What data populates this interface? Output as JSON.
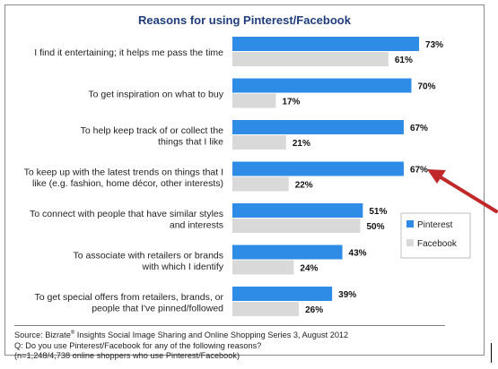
{
  "chart_data": {
    "type": "bar",
    "orientation": "horizontal",
    "title": "Reasons for using Pinterest/Facebook",
    "categories": [
      [
        "I find it entertaining; it helps me pass the time"
      ],
      [
        "To get inspiration on what to buy"
      ],
      [
        "To help keep track of or collect the",
        "things that I like"
      ],
      [
        "To keep up with the latest trends on things that I",
        "like (e.g. fashion, home décor, other interests)"
      ],
      [
        "To connect with people that have similar styles",
        "and interests"
      ],
      [
        "To associate with retailers or brands",
        "with which I identify"
      ],
      [
        "To get special offers from retailers, brands, or",
        "people that I've pinned/followed"
      ]
    ],
    "series": [
      {
        "name": "Pinterest",
        "color": "#2f8ce6",
        "values": [
          73,
          70,
          67,
          67,
          51,
          43,
          39
        ]
      },
      {
        "name": "Facebook",
        "color": "#d9d9d9",
        "values": [
          61,
          17,
          21,
          22,
          50,
          24,
          26
        ]
      }
    ],
    "value_suffix": "%",
    "xlim": [
      0,
      100
    ],
    "grid": false,
    "legend_position": "right",
    "annotation": "red-arrow-pointing-at-bar-4"
  },
  "footer": {
    "source_prefix": "Source: Bizrate",
    "source_sup": "®",
    "source_rest": " Insights Social Image Sharing and Online Shopping Series 3, August 2012",
    "question": "Q: Do you use Pinterest/Facebook for any of the following reasons?",
    "base": " (n=1,248/4,738 online shoppers who use Pinterest/Facebook)"
  }
}
